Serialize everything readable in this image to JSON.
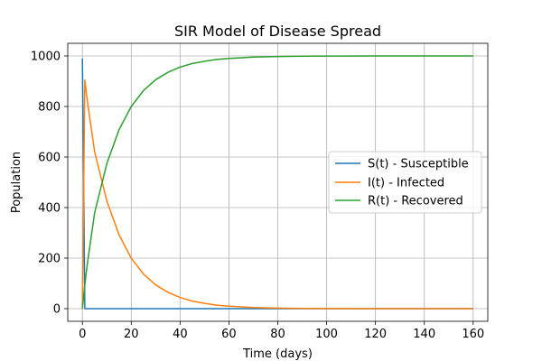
{
  "chart_data": {
    "type": "line",
    "title": "SIR Model of Disease Spread",
    "xlabel": "Time (days)",
    "ylabel": "Population",
    "xlim": [
      -6,
      166
    ],
    "ylim": [
      -50,
      1050
    ],
    "xticks": [
      0,
      20,
      40,
      60,
      80,
      100,
      120,
      140,
      160
    ],
    "yticks": [
      0,
      200,
      400,
      600,
      800,
      1000
    ],
    "grid": true,
    "legend_position": "center-right",
    "series": [
      {
        "name": "S(t) - Susceptible",
        "color": "#1f77b4",
        "x": [
          0,
          1,
          2,
          160
        ],
        "y": [
          990,
          0,
          0,
          0
        ]
      },
      {
        "name": "I(t) - Infected",
        "color": "#ff7f0e",
        "x": [
          0,
          1,
          2,
          5,
          10,
          15,
          20,
          25,
          30,
          35,
          40,
          45,
          50,
          55,
          60,
          70,
          80,
          90,
          100,
          120,
          140,
          160
        ],
        "y": [
          10,
          905,
          824,
          621,
          426,
          292,
          200,
          137,
          94,
          65,
          44,
          30,
          21,
          14,
          10,
          4.6,
          2.2,
          1,
          0.5,
          0.1,
          0,
          0
        ]
      },
      {
        "name": "R(t) - Recovered",
        "color": "#2ca02c",
        "x": [
          0,
          1,
          2,
          5,
          10,
          15,
          20,
          25,
          30,
          35,
          40,
          45,
          50,
          55,
          60,
          70,
          80,
          90,
          100,
          120,
          140,
          160
        ],
        "y": [
          0,
          95,
          176,
          379,
          574,
          708,
          800,
          863,
          906,
          935,
          956,
          970,
          979,
          986,
          990,
          995.4,
          997.8,
          999,
          999.5,
          999.9,
          1000,
          1000
        ]
      }
    ]
  }
}
